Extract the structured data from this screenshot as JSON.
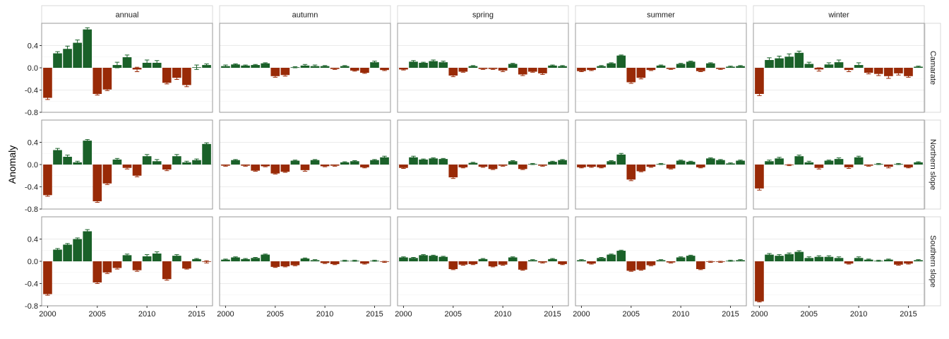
{
  "chart_data": {
    "type": "bar",
    "title": "",
    "xlabel": "",
    "ylabel": "Anomaly",
    "ylim": [
      -0.8,
      0.8
    ],
    "yticks": [
      "0.4",
      "0.0",
      "-0.4",
      "-0.8"
    ],
    "xticks": [
      "2000",
      "2005",
      "2010",
      "2015"
    ],
    "grid": true,
    "columns": [
      "annual",
      "autumn",
      "spring",
      "summer",
      "winter"
    ],
    "rows": [
      "Camarate",
      "Northern slope",
      "Southern slope"
    ],
    "years": [
      2000,
      2001,
      2002,
      2003,
      2004,
      2005,
      2006,
      2007,
      2008,
      2009,
      2010,
      2011,
      2012,
      2013,
      2014,
      2015,
      2016
    ],
    "colors": {
      "positive": "#1a6129",
      "negative": "#992a07"
    },
    "panels": [
      {
        "row": "Camarate",
        "col": "annual",
        "values": [
          -0.54,
          0.26,
          0.34,
          0.45,
          0.69,
          -0.47,
          -0.39,
          0.05,
          0.19,
          -0.03,
          0.09,
          0.09,
          -0.27,
          -0.18,
          -0.31,
          0.01,
          0.05
        ],
        "errors": [
          0.03,
          0.03,
          0.05,
          0.05,
          0.03,
          0.02,
          0.02,
          0.05,
          0.04,
          0.04,
          0.05,
          0.04,
          0.02,
          0.03,
          0.03,
          0.04,
          0.02
        ]
      },
      {
        "row": "Camarate",
        "col": "autumn",
        "values": [
          0.03,
          0.06,
          0.04,
          0.05,
          0.08,
          -0.15,
          -0.13,
          0.01,
          0.04,
          0.03,
          0.03,
          -0.02,
          0.03,
          -0.05,
          -0.09,
          0.1,
          -0.04
        ],
        "errors": [
          0.02,
          0.01,
          0.01,
          0.01,
          0.01,
          0.02,
          0.02,
          0.01,
          0.02,
          0.02,
          0.01,
          0.01,
          0.01,
          0.01,
          0.01,
          0.02,
          0.01
        ]
      },
      {
        "row": "Camarate",
        "col": "spring",
        "values": [
          -0.03,
          0.11,
          0.09,
          0.12,
          0.1,
          -0.14,
          -0.07,
          0.03,
          -0.02,
          -0.02,
          -0.05,
          0.07,
          -0.12,
          -0.07,
          -0.1,
          0.04,
          0.03
        ],
        "errors": [
          0.01,
          0.02,
          0.01,
          0.02,
          0.02,
          0.02,
          0.01,
          0.01,
          0.01,
          0.01,
          0.02,
          0.01,
          0.02,
          0.01,
          0.02,
          0.01,
          0.01
        ]
      },
      {
        "row": "Camarate",
        "col": "summer",
        "values": [
          -0.06,
          -0.04,
          0.03,
          0.08,
          0.22,
          -0.26,
          -0.18,
          -0.04,
          0.04,
          -0.02,
          0.07,
          0.11,
          -0.06,
          0.08,
          -0.02,
          0.02,
          0.03
        ],
        "errors": [
          0.01,
          0.01,
          0.01,
          0.01,
          0.01,
          0.02,
          0.02,
          0.01,
          0.01,
          0.01,
          0.01,
          0.01,
          0.01,
          0.01,
          0.01,
          0.01,
          0.01
        ]
      },
      {
        "row": "Camarate",
        "col": "winter",
        "values": [
          -0.47,
          0.14,
          0.17,
          0.2,
          0.27,
          0.07,
          -0.03,
          0.06,
          0.1,
          -0.04,
          0.05,
          -0.09,
          -0.11,
          -0.15,
          -0.1,
          -0.15,
          0.02
        ],
        "errors": [
          0.03,
          0.04,
          0.04,
          0.05,
          0.03,
          0.03,
          0.03,
          0.03,
          0.04,
          0.03,
          0.04,
          0.02,
          0.03,
          0.04,
          0.03,
          0.02,
          0.01
        ]
      },
      {
        "row": "Northern slope",
        "col": "annual",
        "values": [
          -0.55,
          0.26,
          0.14,
          0.04,
          0.43,
          -0.66,
          -0.34,
          0.09,
          -0.06,
          -0.2,
          0.15,
          0.06,
          -0.09,
          0.15,
          0.04,
          0.08,
          0.37
        ],
        "errors": [
          0.02,
          0.03,
          0.03,
          0.02,
          0.02,
          0.02,
          0.02,
          0.02,
          0.02,
          0.02,
          0.03,
          0.03,
          0.02,
          0.03,
          0.02,
          0.02,
          0.02
        ]
      },
      {
        "row": "Northern slope",
        "col": "autumn",
        "values": [
          -0.02,
          0.08,
          -0.02,
          -0.11,
          -0.03,
          -0.16,
          -0.13,
          0.07,
          -0.1,
          0.08,
          -0.03,
          -0.02,
          0.04,
          0.06,
          -0.05,
          0.08,
          0.13
        ],
        "errors": [
          0.01,
          0.01,
          0.01,
          0.01,
          0.01,
          0.01,
          0.01,
          0.01,
          0.02,
          0.01,
          0.01,
          0.01,
          0.01,
          0.01,
          0.01,
          0.01,
          0.02
        ]
      },
      {
        "row": "Northern slope",
        "col": "spring",
        "values": [
          -0.06,
          0.13,
          0.09,
          0.11,
          0.1,
          -0.23,
          -0.05,
          0.03,
          -0.04,
          -0.08,
          -0.02,
          0.06,
          -0.08,
          0.01,
          -0.02,
          0.05,
          0.08
        ],
        "errors": [
          0.01,
          0.02,
          0.01,
          0.01,
          0.01,
          0.02,
          0.01,
          0.01,
          0.01,
          0.01,
          0.01,
          0.01,
          0.01,
          0.01,
          0.01,
          0.01,
          0.01
        ]
      },
      {
        "row": "Northern slope",
        "col": "summer",
        "values": [
          -0.05,
          -0.04,
          -0.05,
          0.06,
          0.18,
          -0.27,
          -0.12,
          -0.04,
          0.01,
          -0.07,
          0.07,
          0.05,
          -0.05,
          0.11,
          0.08,
          0.02,
          0.07
        ],
        "errors": [
          0.01,
          0.01,
          0.01,
          0.01,
          0.02,
          0.02,
          0.01,
          0.01,
          0.01,
          0.01,
          0.01,
          0.01,
          0.01,
          0.01,
          0.01,
          0.01,
          0.01
        ]
      },
      {
        "row": "Northern slope",
        "col": "winter",
        "values": [
          -0.43,
          0.06,
          0.11,
          -0.01,
          0.15,
          0.04,
          -0.06,
          0.07,
          0.1,
          -0.05,
          0.13,
          -0.02,
          0.01,
          -0.04,
          0.01,
          -0.05,
          0.04
        ],
        "errors": [
          0.03,
          0.02,
          0.02,
          0.01,
          0.02,
          0.02,
          0.02,
          0.01,
          0.02,
          0.02,
          0.02,
          0.01,
          0.01,
          0.02,
          0.01,
          0.01,
          0.01
        ]
      },
      {
        "row": "Southern slope",
        "col": "annual",
        "values": [
          -0.59,
          0.21,
          0.3,
          0.4,
          0.54,
          -0.38,
          -0.2,
          -0.12,
          0.11,
          -0.16,
          0.09,
          0.14,
          -0.32,
          0.1,
          -0.13,
          0.04,
          -0.01
        ],
        "errors": [
          0.02,
          0.02,
          0.02,
          0.02,
          0.03,
          0.02,
          0.02,
          0.02,
          0.02,
          0.02,
          0.03,
          0.03,
          0.02,
          0.02,
          0.01,
          0.01,
          0.02
        ]
      },
      {
        "row": "Southern slope",
        "col": "autumn",
        "values": [
          0.03,
          0.07,
          0.04,
          0.06,
          0.12,
          -0.1,
          -0.09,
          -0.07,
          0.05,
          0.02,
          -0.03,
          -0.05,
          0.01,
          0.01,
          -0.04,
          0.01,
          -0.01
        ],
        "errors": [
          0.01,
          0.01,
          0.01,
          0.01,
          0.01,
          0.01,
          0.01,
          0.01,
          0.01,
          0.01,
          0.01,
          0.01,
          0.01,
          0.01,
          0.01,
          0.01,
          0.01
        ]
      },
      {
        "row": "Southern slope",
        "col": "spring",
        "values": [
          0.07,
          0.06,
          0.11,
          0.1,
          0.08,
          -0.14,
          -0.06,
          -0.05,
          0.04,
          -0.09,
          -0.06,
          0.07,
          -0.15,
          0.02,
          -0.02,
          0.04,
          -0.05
        ],
        "errors": [
          0.01,
          0.01,
          0.01,
          0.01,
          0.01,
          0.01,
          0.01,
          0.01,
          0.01,
          0.01,
          0.01,
          0.01,
          0.01,
          0.01,
          0.01,
          0.01,
          0.01
        ]
      },
      {
        "row": "Southern slope",
        "col": "summer",
        "values": [
          0.02,
          -0.04,
          0.06,
          0.12,
          0.19,
          -0.17,
          -0.15,
          -0.07,
          0.02,
          -0.02,
          0.07,
          0.1,
          -0.14,
          -0.01,
          -0.01,
          0.01,
          0.02
        ],
        "errors": [
          0.01,
          0.01,
          0.01,
          0.01,
          0.01,
          0.01,
          0.01,
          0.01,
          0.01,
          0.01,
          0.01,
          0.01,
          0.01,
          0.01,
          0.01,
          0.01,
          0.01
        ]
      },
      {
        "row": "Southern slope",
        "col": "winter",
        "values": [
          -0.72,
          0.12,
          0.1,
          0.13,
          0.17,
          0.06,
          0.08,
          0.08,
          0.06,
          -0.04,
          0.06,
          0.03,
          0.01,
          0.03,
          -0.06,
          -0.04,
          0.02
        ],
        "errors": [
          0.01,
          0.02,
          0.02,
          0.02,
          0.02,
          0.02,
          0.02,
          0.02,
          0.02,
          0.01,
          0.02,
          0.01,
          0.01,
          0.01,
          0.01,
          0.01,
          0.01
        ]
      }
    ]
  }
}
